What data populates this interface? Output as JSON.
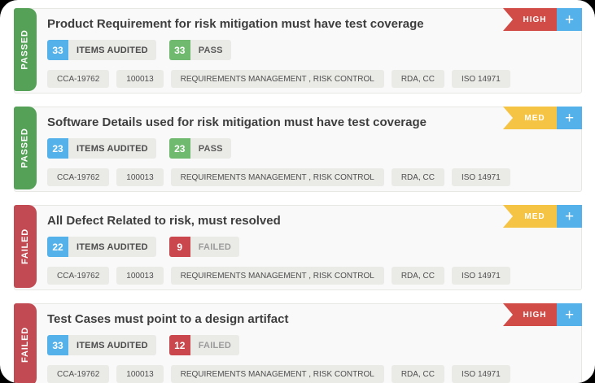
{
  "ui": {
    "add_button_label": "+"
  },
  "colors": {
    "screen_background": "#000000",
    "surface": "#ffffff",
    "card_background": "#f9f9f9",
    "card_border": "#e7e7e4",
    "chip_background": "#eaeae7",
    "passed_green": "#55a158",
    "failed_red": "#c24a52",
    "priority_high_red": "#d14b47",
    "priority_med_yellow": "#f6c444",
    "count_blue": "#55b1e9",
    "count_green": "#70ba70",
    "count_red": "#c9474d",
    "add_button_blue": "#55b1e9"
  },
  "cards": [
    {
      "status": "PASSED",
      "status_color": "#55a158",
      "priority": "HIGH",
      "priority_color": "#d14b47",
      "title": "Product Requirement for risk mitigation must have test coverage",
      "badges": [
        {
          "count": "33",
          "count_color": "#55b1e9",
          "label": "ITEMS AUDITED",
          "label_color": "#4b4b4b"
        },
        {
          "count": "33",
          "count_color": "#70ba70",
          "label": "PASS",
          "label_color": "#5a5a5a"
        }
      ],
      "tags": [
        "CCA-19762",
        "100013",
        "REQUIREMENTS MANAGEMENT , RISK CONTROL",
        "RDA, CC",
        "ISO 14971"
      ]
    },
    {
      "status": "PASSED",
      "status_color": "#55a158",
      "priority": "MED",
      "priority_color": "#f6c444",
      "title": "Software Details used for risk mitigation must have test coverage",
      "badges": [
        {
          "count": "23",
          "count_color": "#55b1e9",
          "label": "ITEMS AUDITED",
          "label_color": "#4b4b4b"
        },
        {
          "count": "23",
          "count_color": "#70ba70",
          "label": "PASS",
          "label_color": "#5a5a5a"
        }
      ],
      "tags": [
        "CCA-19762",
        "100013",
        "REQUIREMENTS MANAGEMENT , RISK CONTROL",
        "RDA, CC",
        "ISO 14971"
      ]
    },
    {
      "status": "FAILED",
      "status_color": "#c24a52",
      "priority": "MED",
      "priority_color": "#f6c444",
      "title": "All Defect Related to risk, must resolved",
      "badges": [
        {
          "count": "22",
          "count_color": "#55b1e9",
          "label": "ITEMS AUDITED",
          "label_color": "#4b4b4b"
        },
        {
          "count": "9",
          "count_color": "#c9474d",
          "label": "FAILED",
          "label_color": "#9b9b9b"
        }
      ],
      "tags": [
        "CCA-19762",
        "100013",
        "REQUIREMENTS MANAGEMENT , RISK CONTROL",
        "RDA, CC",
        "ISO 14971"
      ]
    },
    {
      "status": "FAILED",
      "status_color": "#c24a52",
      "priority": "HIGH",
      "priority_color": "#d14b47",
      "title": "Test Cases must point to a design artifact",
      "badges": [
        {
          "count": "33",
          "count_color": "#55b1e9",
          "label": "ITEMS AUDITED",
          "label_color": "#4b4b4b"
        },
        {
          "count": "12",
          "count_color": "#c9474d",
          "label": "FAILED",
          "label_color": "#9b9b9b"
        }
      ],
      "tags": [
        "CCA-19762",
        "100013",
        "REQUIREMENTS MANAGEMENT , RISK CONTROL",
        "RDA, CC",
        "ISO 14971"
      ]
    }
  ]
}
